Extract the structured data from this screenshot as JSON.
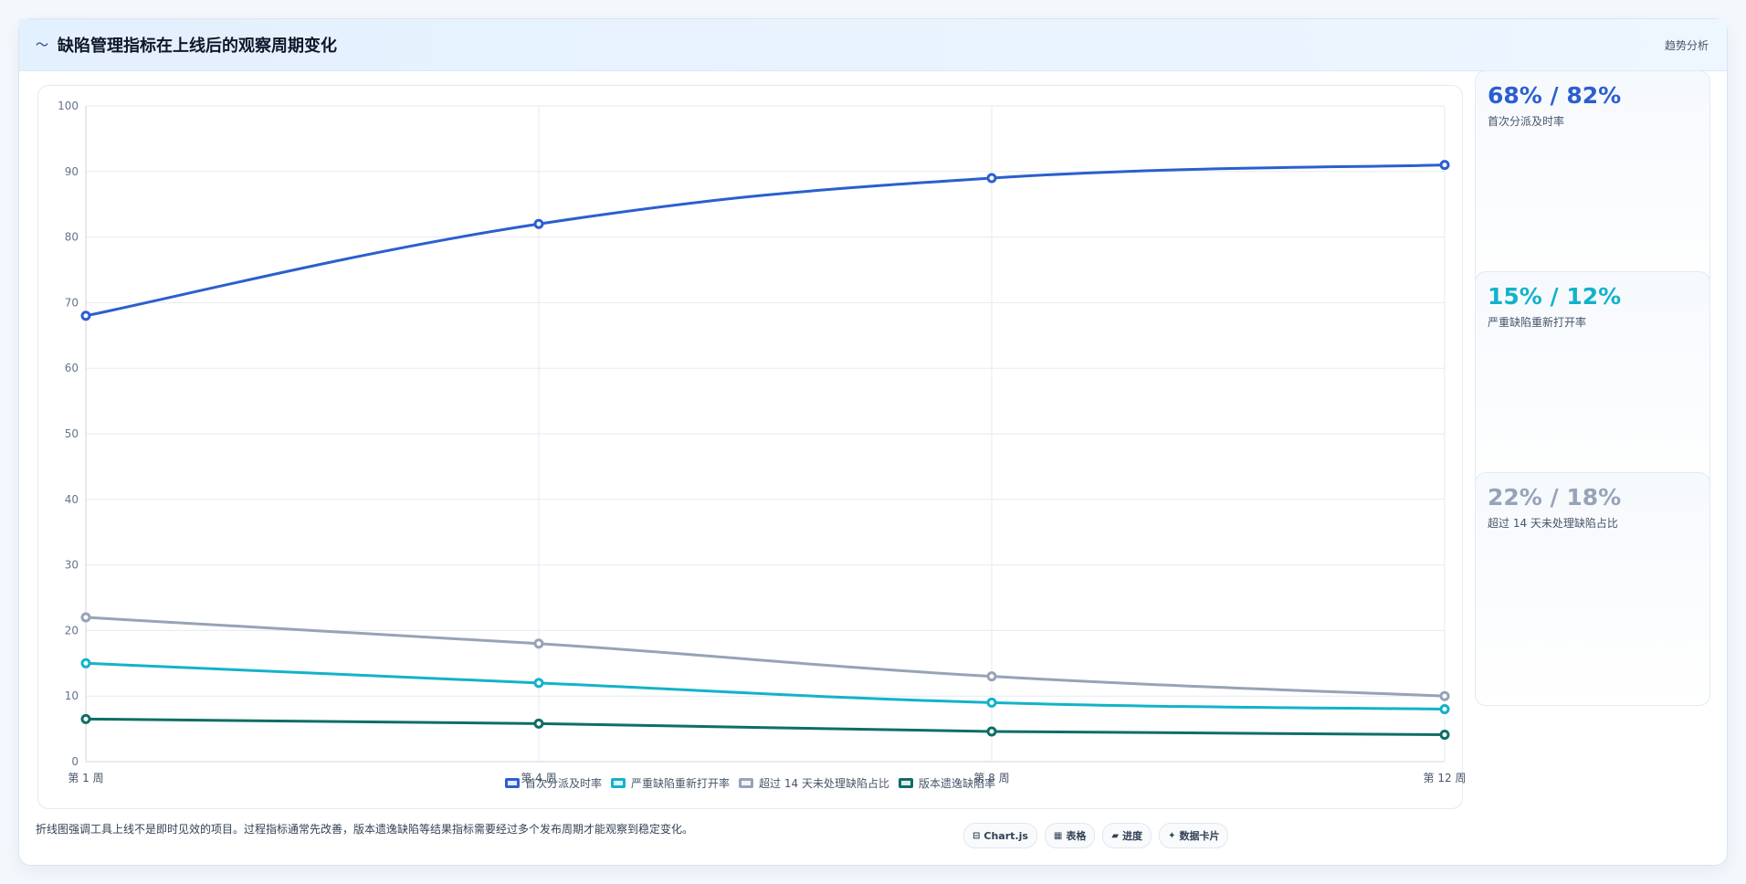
{
  "header": {
    "icon": "chart-icon",
    "icon_glyph": "〜",
    "title": "缺陷管理指标在上线后的观察周期变化",
    "tag": "趋势分析"
  },
  "chart_data": {
    "type": "line",
    "categories": [
      "第 1 周",
      "第 4 周",
      "第 8 周",
      "第 12 周"
    ],
    "ylim": [
      0,
      100
    ],
    "yticks": [
      "0",
      "10",
      "20",
      "30",
      "40",
      "50",
      "60",
      "70",
      "80",
      "90",
      "100"
    ],
    "grid": true,
    "legend_position": "bottom",
    "series": [
      {
        "name": "首次分派及时率",
        "color": "#2b5fcf",
        "values": [
          68,
          82,
          89,
          91
        ]
      },
      {
        "name": "严重缺陷重新打开率",
        "color": "#12b3c9",
        "values": [
          15,
          12,
          9,
          8
        ]
      },
      {
        "name": "超过 14 天未处理缺陷占比",
        "color": "#97a3b6",
        "values": [
          22,
          18,
          13,
          10
        ]
      },
      {
        "name": "版本遗逸缺陷率",
        "color": "#0f6e66",
        "values": [
          6.5,
          5.8,
          4.6,
          4.1
        ]
      }
    ]
  },
  "kpis": [
    {
      "value": "68% / 82%",
      "label": "首次分派及时率",
      "color": "#2b5fcf"
    },
    {
      "value": "15% / 12%",
      "label": "严重缺陷重新打开率",
      "color": "#12b3c9"
    },
    {
      "value": "22% / 18%",
      "label": "超过 14 天未处理缺陷占比",
      "color": "#97a3b6"
    }
  ],
  "footer": {
    "note": "折线图强调工具上线不是即时见效的项目。过程指标通常先改善，版本遗逸缺陷等结果指标需要经过多个发布周期才能观察到稳定变化。",
    "chips": [
      {
        "icon": "chartjs-icon",
        "glyph": "⊟",
        "label": "Chart.js"
      },
      {
        "icon": "table-icon",
        "glyph": "▦",
        "label": "表格"
      },
      {
        "icon": "progress-icon",
        "glyph": "▰",
        "label": "进度"
      },
      {
        "icon": "data-card-icon",
        "glyph": "✦",
        "label": "数据卡片"
      }
    ]
  }
}
